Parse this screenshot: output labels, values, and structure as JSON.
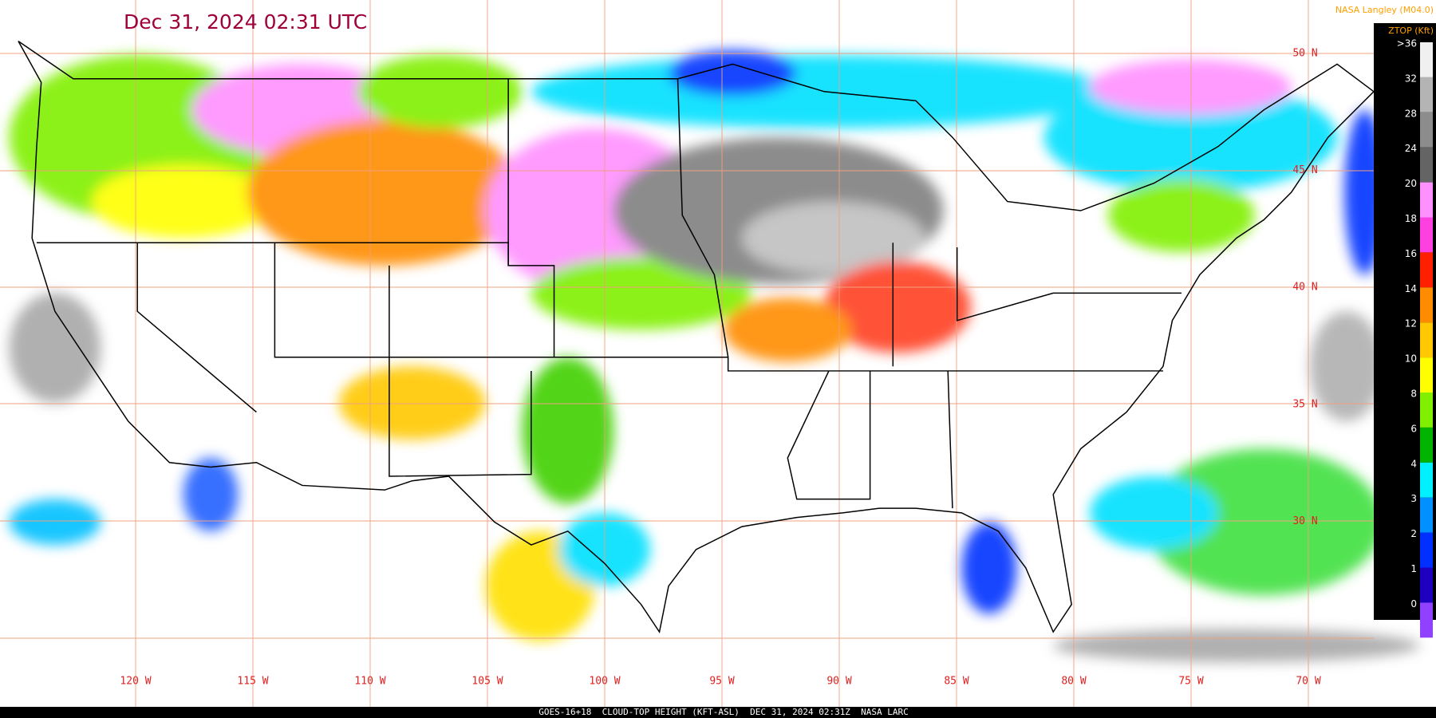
{
  "header": {
    "title": "Dec 31, 2024 02:31 UTC",
    "credit": "NASA Langley (M04.0)"
  },
  "legend": {
    "title": "ZTOP (Kft)",
    "items": [
      {
        "label": ">36",
        "color": "#f0f0f0"
      },
      {
        "label": "32",
        "color": "#b4b4b4"
      },
      {
        "label": "28",
        "color": "#8c8c8c"
      },
      {
        "label": "24",
        "color": "#646464"
      },
      {
        "label": "20",
        "color": "#ff90ff"
      },
      {
        "label": "18",
        "color": "#ff40e0"
      },
      {
        "label": "16",
        "color": "#ff2000"
      },
      {
        "label": "14",
        "color": "#ff8c00"
      },
      {
        "label": "12",
        "color": "#ffc800"
      },
      {
        "label": "10",
        "color": "#ffff00"
      },
      {
        "label": "8",
        "color": "#80f000"
      },
      {
        "label": "6",
        "color": "#00b400"
      },
      {
        "label": "4",
        "color": "#00f0ff"
      },
      {
        "label": "3",
        "color": "#0090ff"
      },
      {
        "label": "2",
        "color": "#0030ff"
      },
      {
        "label": "1",
        "color": "#2000c0"
      },
      {
        "label": "0",
        "color": "#9040ff"
      }
    ]
  },
  "lon_labels": [
    "120 W",
    "115 W",
    "110 W",
    "105 W",
    "100 W",
    "95 W",
    "90 W",
    "85 W",
    "80 W",
    "75 W",
    "70 W"
  ],
  "lat_labels": [
    "50 N",
    "45 N",
    "40 N",
    "35 N",
    "30 N"
  ],
  "footer": "GOES-16+18  CLOUD-TOP HEIGHT (KFT-ASL)  DEC 31, 2024 02:31Z  NASA LARC"
}
